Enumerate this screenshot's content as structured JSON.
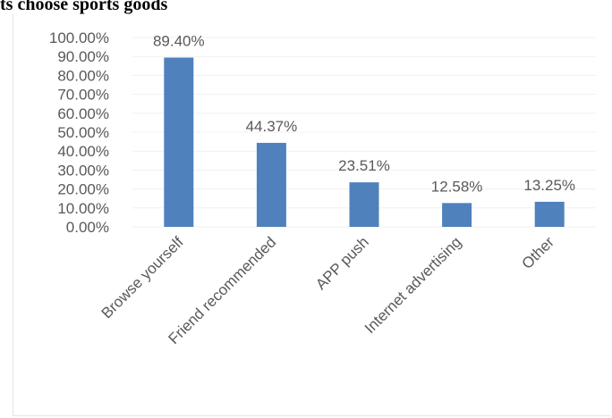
{
  "title": "ts choose sports goods",
  "chart_data": {
    "type": "bar",
    "categories": [
      "Browse yourself",
      "Friend recommended",
      "APP push",
      "Internet advertising",
      "Other"
    ],
    "values": [
      89.4,
      44.37,
      23.51,
      12.58,
      13.25
    ],
    "value_labels": [
      "89.40%",
      "44.37%",
      "23.51%",
      "12.58%",
      "13.25%"
    ],
    "y_ticks": [
      0,
      10,
      20,
      30,
      40,
      50,
      60,
      70,
      80,
      90,
      100
    ],
    "y_tick_labels": [
      "0.00%",
      "10.00%",
      "20.00%",
      "30.00%",
      "40.00%",
      "50.00%",
      "60.00%",
      "70.00%",
      "80.00%",
      "90.00%",
      "100.00%"
    ],
    "ylim": [
      0,
      100
    ],
    "grid": true,
    "legend": "none",
    "bar_color": "#4f81bd",
    "gridline_color": "#f0f0f0",
    "text_color": "#595959"
  }
}
